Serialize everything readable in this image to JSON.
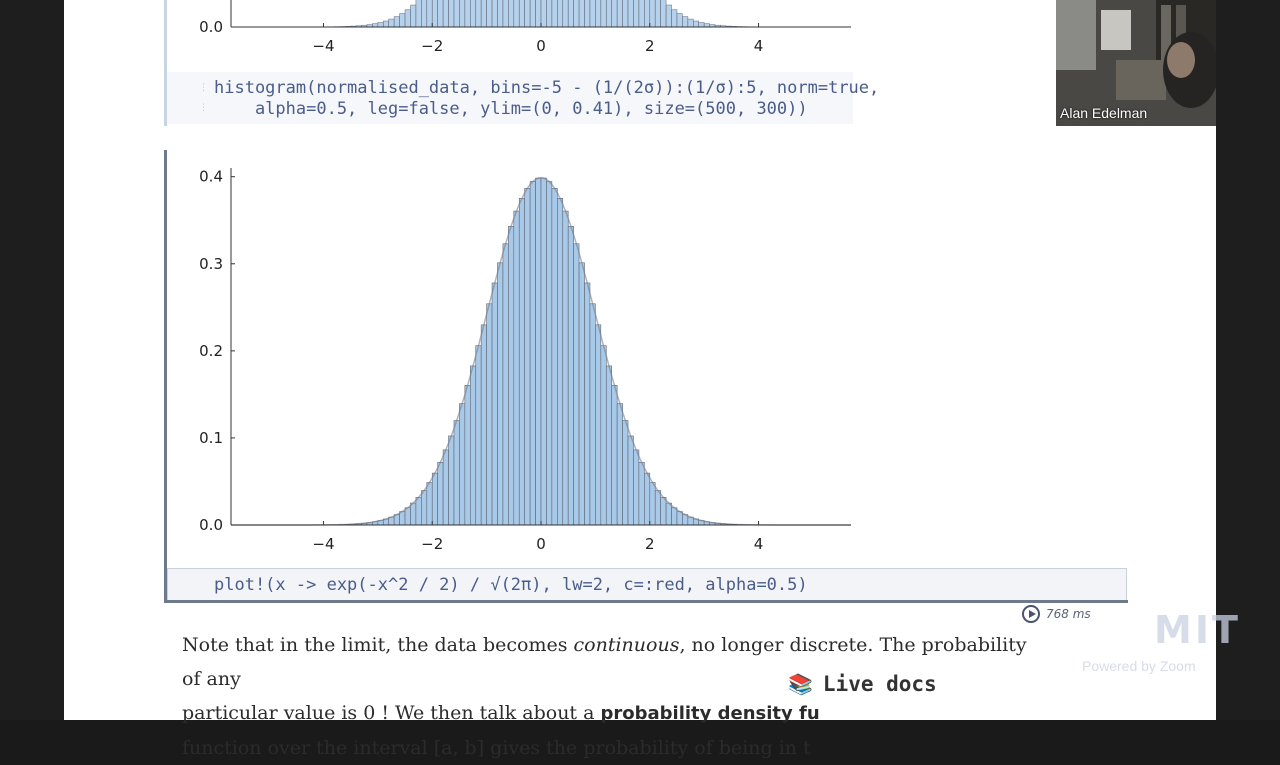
{
  "histogram_code": {
    "line1": "histogram(normalised_data, bins=-5 - (1/(2σ)):(1/σ):5, norm=true,",
    "line2": "    alpha=0.5, leg=false, ylim=(0, 0.41), size=(500, 300))"
  },
  "plot_code": "plot!(x -> exp(-x^2 / 2) / √(2π), lw=2, c=:red, alpha=0.5)",
  "run_time": "768 ms",
  "prose_line1": [
    "Note that in the limit, the data becomes ",
    "continuous",
    ", no longer discrete. The probability of any"
  ],
  "prose_line2": [
    "particular value is 0 ! We then talk about a ",
    "probability density fu"
  ],
  "prose_line3": "function over the interval [a, b] gives the probability of being in t",
  "live_docs_label": "Live docs",
  "video": {
    "participant_name": "Alan Edelman"
  },
  "watermark": {
    "logo": "MIT",
    "powered_by": "Powered by Zoom"
  },
  "colors": {
    "bar_fill": "#a9c9e8",
    "bar_edge": "#5d6675",
    "axis": "#333333"
  },
  "chart_data": [
    {
      "type": "bar",
      "note": "normalized histogram of standard normal data (top, partially visible)",
      "xlim": [
        -5.7,
        5.7
      ],
      "ylim": [
        0,
        0.41
      ],
      "xticks": [
        "−4",
        "−2",
        "0",
        "2",
        "4"
      ],
      "yticks": [
        "0.0"
      ]
    },
    {
      "type": "bar",
      "note": "normalized histogram with standard normal density",
      "xlim": [
        -5.7,
        5.7
      ],
      "ylim": [
        0,
        0.41
      ],
      "xticks": [
        "−4",
        "−2",
        "0",
        "2",
        "4"
      ],
      "yticks": [
        "0.0",
        "0.1",
        "0.2",
        "0.3",
        "0.4"
      ],
      "bin_start": -5,
      "bin_width": 0.1,
      "bin_count": 100,
      "density": "exp(-x^2/2)/sqrt(2π)"
    }
  ]
}
